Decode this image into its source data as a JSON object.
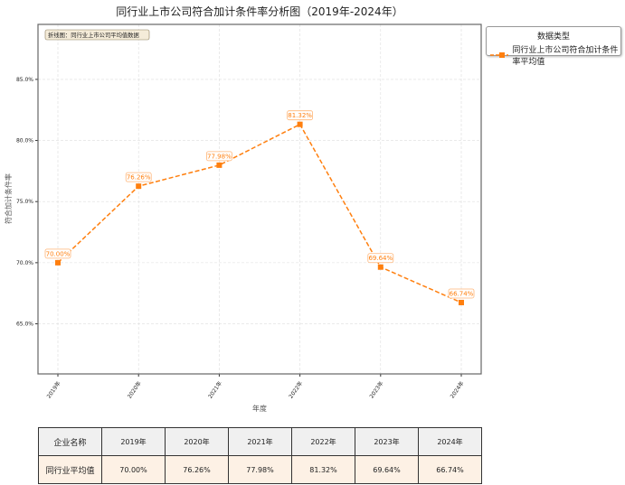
{
  "title": "同行业上市公司符合加计条件率分析图（2019年-2024年）",
  "annotation": "折线图：同行业上市公司平均值数据",
  "legend": {
    "title": "数据类型",
    "entries": [
      "同行业上市公司符合加计条件率平均值"
    ]
  },
  "colors": {
    "line": "#ff7f0e"
  },
  "chart_data": {
    "type": "line",
    "title": "同行业上市公司符合加计条件率分析图（2019年-2024年）",
    "xlabel": "年度",
    "ylabel": "符合加计条件率",
    "categories": [
      "2019年",
      "2020年",
      "2021年",
      "2022年",
      "2023年",
      "2024年"
    ],
    "series": [
      {
        "name": "同行业上市公司符合加计条件率平均值",
        "values": [
          70.0,
          76.26,
          77.98,
          81.32,
          69.64,
          66.74
        ]
      }
    ],
    "labels": [
      "70.00%",
      "76.26%",
      "77.98%",
      "81.32%",
      "69.64%",
      "66.74%"
    ],
    "yticks": [
      "65.0%",
      "70.0%",
      "75.0%",
      "80.0%",
      "85.0%"
    ],
    "ytick_values": [
      65,
      70,
      75,
      80,
      85
    ],
    "ylim": [
      60.9,
      89.5
    ],
    "grid": true,
    "legend_position": "outside-top-right"
  },
  "table": {
    "headers": [
      "企业名称",
      "2019年",
      "2020年",
      "2021年",
      "2022年",
      "2023年",
      "2024年"
    ],
    "row": [
      "同行业平均值",
      "70.00%",
      "76.26%",
      "77.98%",
      "81.32%",
      "69.64%",
      "66.74%"
    ]
  }
}
